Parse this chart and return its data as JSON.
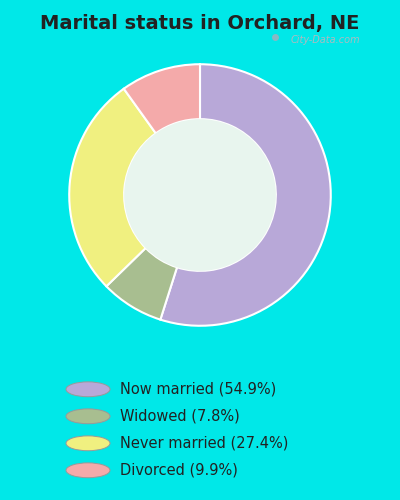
{
  "title": "Marital status in Orchard, NE",
  "slices": [
    54.9,
    7.8,
    27.4,
    9.9
  ],
  "labels": [
    "Now married (54.9%)",
    "Widowed (7.8%)",
    "Never married (27.4%)",
    "Divorced (9.9%)"
  ],
  "colors": [
    "#b8a8d8",
    "#a8be90",
    "#f0f080",
    "#f4aaaa"
  ],
  "bg_cyan": "#00e8e8",
  "bg_chart": "#e8f5ee",
  "donut_width": 0.42,
  "start_angle": 90,
  "title_fontsize": 14,
  "legend_fontsize": 10.5,
  "watermark": "City-Data.com"
}
